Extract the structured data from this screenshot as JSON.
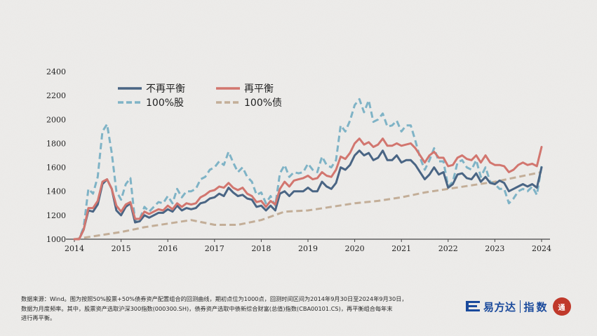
{
  "chart_data": {
    "type": "line",
    "title": "",
    "xlabel": "",
    "ylabel": "",
    "xlim": [
      2014.0,
      2024.2
    ],
    "ylim": [
      1000,
      2400
    ],
    "x_ticks": [
      "2014",
      "2015",
      "2016",
      "2017",
      "2018",
      "2019",
      "2020",
      "2021",
      "2022",
      "2023",
      "2024"
    ],
    "y_ticks": [
      "1000",
      "1200",
      "1400",
      "1600",
      "1800",
      "2000",
      "2200",
      "2400"
    ],
    "legend_position": "top-left",
    "grid": false,
    "series": [
      {
        "name": "不再平衡",
        "color": "#4a6584",
        "style": "solid",
        "x": [
          2014.0,
          2014.1,
          2014.2,
          2014.3,
          2014.4,
          2014.5,
          2014.6,
          2014.7,
          2014.8,
          2014.9,
          2015.0,
          2015.1,
          2015.2,
          2015.3,
          2015.4,
          2015.5,
          2015.6,
          2015.7,
          2015.8,
          2015.9,
          2016.0,
          2016.1,
          2016.2,
          2016.3,
          2016.4,
          2016.5,
          2016.6,
          2016.7,
          2016.8,
          2016.9,
          2017.0,
          2017.1,
          2017.2,
          2017.3,
          2017.4,
          2017.5,
          2017.6,
          2017.7,
          2017.8,
          2017.9,
          2018.0,
          2018.1,
          2018.2,
          2018.3,
          2018.4,
          2018.5,
          2018.6,
          2018.7,
          2018.8,
          2018.9,
          2019.0,
          2019.1,
          2019.2,
          2019.3,
          2019.4,
          2019.5,
          2019.6,
          2019.7,
          2019.8,
          2019.9,
          2020.0,
          2020.1,
          2020.2,
          2020.3,
          2020.4,
          2020.5,
          2020.6,
          2020.7,
          2020.8,
          2020.9,
          2021.0,
          2021.1,
          2021.2,
          2021.3,
          2021.4,
          2021.5,
          2021.6,
          2021.7,
          2021.8,
          2021.9,
          2022.0,
          2022.1,
          2022.2,
          2022.3,
          2022.4,
          2022.5,
          2022.6,
          2022.7,
          2022.8,
          2022.9,
          2023.0,
          2023.1,
          2023.2,
          2023.3,
          2023.4,
          2023.5,
          2023.6,
          2023.7,
          2023.8,
          2023.9,
          2024.0
        ],
        "y": [
          1000,
          1000,
          1080,
          1240,
          1230,
          1290,
          1460,
          1500,
          1420,
          1240,
          1200,
          1270,
          1300,
          1140,
          1150,
          1200,
          1180,
          1200,
          1220,
          1220,
          1250,
          1230,
          1280,
          1240,
          1260,
          1250,
          1260,
          1300,
          1310,
          1340,
          1350,
          1380,
          1360,
          1430,
          1390,
          1360,
          1370,
          1340,
          1330,
          1270,
          1280,
          1240,
          1280,
          1240,
          1380,
          1400,
          1360,
          1400,
          1400,
          1400,
          1430,
          1400,
          1400,
          1480,
          1440,
          1420,
          1470,
          1600,
          1580,
          1620,
          1700,
          1740,
          1700,
          1720,
          1660,
          1680,
          1740,
          1660,
          1660,
          1700,
          1640,
          1660,
          1660,
          1620,
          1560,
          1500,
          1540,
          1600,
          1540,
          1560,
          1430,
          1460,
          1540,
          1550,
          1510,
          1500,
          1550,
          1480,
          1520,
          1470,
          1460,
          1490,
          1470,
          1400,
          1420,
          1440,
          1460,
          1440,
          1460,
          1430,
          1600
        ]
      },
      {
        "name": "再平衡",
        "color": "#d2766f",
        "style": "solid",
        "x": [
          2014.0,
          2014.1,
          2014.2,
          2014.3,
          2014.4,
          2014.5,
          2014.6,
          2014.7,
          2014.8,
          2014.9,
          2015.0,
          2015.1,
          2015.2,
          2015.3,
          2015.4,
          2015.5,
          2015.6,
          2015.7,
          2015.8,
          2015.9,
          2016.0,
          2016.1,
          2016.2,
          2016.3,
          2016.4,
          2016.5,
          2016.6,
          2016.7,
          2016.8,
          2016.9,
          2017.0,
          2017.1,
          2017.2,
          2017.3,
          2017.4,
          2017.5,
          2017.6,
          2017.7,
          2017.8,
          2017.9,
          2018.0,
          2018.1,
          2018.2,
          2018.3,
          2018.4,
          2018.5,
          2018.6,
          2018.7,
          2018.8,
          2018.9,
          2019.0,
          2019.1,
          2019.2,
          2019.3,
          2019.4,
          2019.5,
          2019.6,
          2019.7,
          2019.8,
          2019.9,
          2020.0,
          2020.1,
          2020.2,
          2020.3,
          2020.4,
          2020.5,
          2020.6,
          2020.7,
          2020.8,
          2020.9,
          2021.0,
          2021.1,
          2021.2,
          2021.3,
          2021.4,
          2021.5,
          2021.6,
          2021.7,
          2021.8,
          2021.9,
          2022.0,
          2022.1,
          2022.2,
          2022.3,
          2022.4,
          2022.5,
          2022.6,
          2022.7,
          2022.8,
          2022.9,
          2023.0,
          2023.1,
          2023.2,
          2023.3,
          2023.4,
          2023.5,
          2023.6,
          2023.7,
          2023.8,
          2023.9,
          2024.0
        ],
        "y": [
          1000,
          1000,
          1080,
          1260,
          1260,
          1320,
          1480,
          1500,
          1420,
          1280,
          1230,
          1290,
          1310,
          1170,
          1170,
          1230,
          1210,
          1230,
          1250,
          1240,
          1280,
          1250,
          1300,
          1270,
          1300,
          1290,
          1300,
          1350,
          1370,
          1400,
          1410,
          1440,
          1430,
          1470,
          1430,
          1410,
          1430,
          1380,
          1360,
          1310,
          1320,
          1270,
          1320,
          1290,
          1420,
          1480,
          1440,
          1490,
          1500,
          1510,
          1530,
          1500,
          1510,
          1560,
          1530,
          1520,
          1580,
          1690,
          1670,
          1720,
          1800,
          1840,
          1790,
          1810,
          1770,
          1790,
          1840,
          1780,
          1780,
          1800,
          1780,
          1790,
          1800,
          1760,
          1700,
          1640,
          1700,
          1730,
          1680,
          1680,
          1610,
          1620,
          1680,
          1700,
          1670,
          1660,
          1700,
          1640,
          1700,
          1640,
          1620,
          1620,
          1610,
          1560,
          1580,
          1620,
          1640,
          1620,
          1630,
          1610,
          1770
        ]
      },
      {
        "name": "100%股",
        "color": "#7fb3c6",
        "style": "dashed",
        "x": [
          2014.0,
          2014.1,
          2014.2,
          2014.3,
          2014.4,
          2014.5,
          2014.6,
          2014.7,
          2014.8,
          2014.9,
          2015.0,
          2015.1,
          2015.2,
          2015.3,
          2015.4,
          2015.5,
          2015.6,
          2015.7,
          2015.8,
          2015.9,
          2016.0,
          2016.1,
          2016.2,
          2016.3,
          2016.4,
          2016.5,
          2016.6,
          2016.7,
          2016.8,
          2016.9,
          2017.0,
          2017.1,
          2017.2,
          2017.3,
          2017.4,
          2017.5,
          2017.6,
          2017.7,
          2017.8,
          2017.9,
          2018.0,
          2018.1,
          2018.2,
          2018.3,
          2018.4,
          2018.5,
          2018.6,
          2018.7,
          2018.8,
          2018.9,
          2019.0,
          2019.1,
          2019.2,
          2019.3,
          2019.4,
          2019.5,
          2019.6,
          2019.7,
          2019.8,
          2019.9,
          2020.0,
          2020.1,
          2020.2,
          2020.3,
          2020.4,
          2020.5,
          2020.6,
          2020.7,
          2020.8,
          2020.9,
          2021.0,
          2021.1,
          2021.2,
          2021.3,
          2021.4,
          2021.5,
          2021.6,
          2021.7,
          2021.8,
          2021.9,
          2022.0,
          2022.1,
          2022.2,
          2022.3,
          2022.4,
          2022.5,
          2022.6,
          2022.7,
          2022.8,
          2022.9,
          2023.0,
          2023.1,
          2023.2,
          2023.3,
          2023.4,
          2023.5,
          2023.6,
          2023.7,
          2023.8,
          2023.9,
          2024.0
        ],
        "y": [
          1000,
          1000,
          1100,
          1420,
          1380,
          1520,
          1900,
          1960,
          1720,
          1400,
          1330,
          1460,
          1510,
          1150,
          1170,
          1270,
          1230,
          1270,
          1310,
          1300,
          1360,
          1300,
          1420,
          1350,
          1400,
          1400,
          1420,
          1500,
          1520,
          1580,
          1600,
          1650,
          1620,
          1730,
          1640,
          1560,
          1600,
          1520,
          1480,
          1370,
          1390,
          1300,
          1360,
          1280,
          1550,
          1620,
          1520,
          1560,
          1550,
          1560,
          1630,
          1580,
          1560,
          1690,
          1620,
          1600,
          1660,
          1950,
          1900,
          1990,
          2120,
          2170,
          2060,
          2160,
          1980,
          2000,
          2050,
          1940,
          1950,
          1990,
          1900,
          1950,
          1950,
          1820,
          1680,
          1580,
          1660,
          1760,
          1650,
          1650,
          1440,
          1480,
          1640,
          1660,
          1600,
          1580,
          1660,
          1520,
          1600,
          1480,
          1460,
          1420,
          1420,
          1300,
          1340,
          1400,
          1420,
          1400,
          1440,
          1370,
          1610
        ]
      },
      {
        "name": "100%债",
        "color": "#c3ae98",
        "style": "dashed",
        "x": [
          2014.0,
          2014.5,
          2015.0,
          2015.5,
          2016.0,
          2016.5,
          2017.0,
          2017.5,
          2018.0,
          2018.5,
          2019.0,
          2019.5,
          2020.0,
          2020.5,
          2021.0,
          2021.5,
          2022.0,
          2022.5,
          2023.0,
          2023.5,
          2024.0
        ],
        "y": [
          1000,
          1030,
          1060,
          1100,
          1130,
          1160,
          1120,
          1120,
          1160,
          1230,
          1240,
          1270,
          1300,
          1320,
          1350,
          1390,
          1420,
          1450,
          1480,
          1520,
          1560
        ]
      }
    ]
  },
  "footnote": {
    "line1": "数据来源：Wind。图为按照50%股票+50%债券资产配置组合的回测曲线，期初点位为1000点，回测时间区间为2014年9月30日至2024年9月30日，",
    "line2": "数据为月度频率。其中，股票资产选取沪深300指数(000300.SH)，债券资产选取中债新综合财富(总值)指数(CBA00101.CS)，再平衡组合每年末",
    "line3": "进行再平衡。"
  },
  "brand": {
    "name": "易方达",
    "sub": "指数",
    "seal": "通"
  }
}
